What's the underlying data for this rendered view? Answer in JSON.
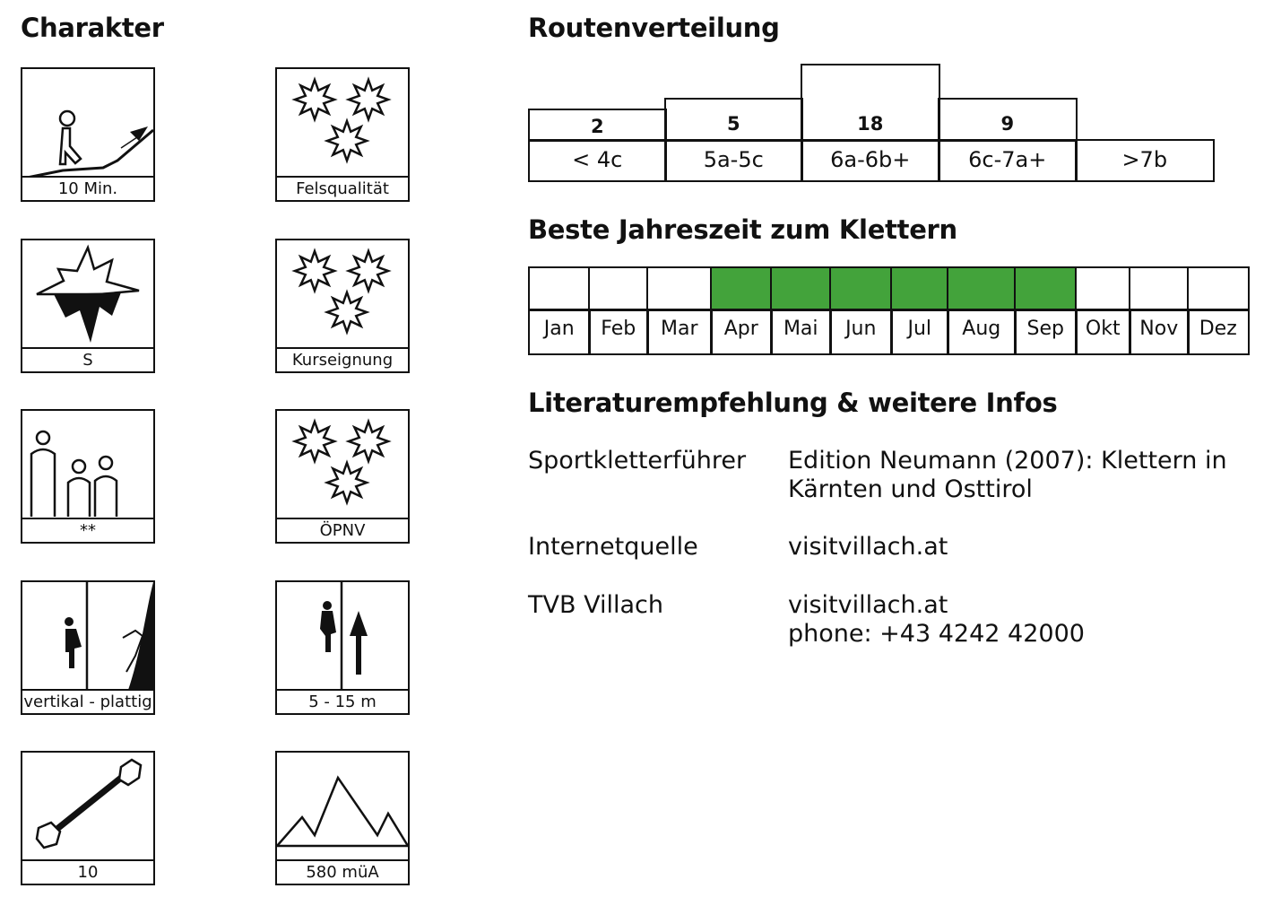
{
  "headings": {
    "charakter": "Charakter",
    "routen": "Routenverteilung",
    "jahreszeit": "Beste Jahreszeit zum Klettern",
    "literatur": "Literaturempfehlung & weitere Infos"
  },
  "tiles": [
    {
      "icon": "hiking-approach-icon",
      "label": "10 Min."
    },
    {
      "icon": "rock-quality-stars-icon",
      "label": "Felsqualität",
      "rating": 3
    },
    {
      "icon": "compass-south-icon",
      "label": "S"
    },
    {
      "icon": "course-suitability-stars-icon",
      "label": "Kurseignung",
      "rating": 3
    },
    {
      "icon": "family-icon",
      "label": "**"
    },
    {
      "icon": "public-transport-stars-icon",
      "label": "ÖPNV",
      "rating": 3
    },
    {
      "icon": "wall-angle-icon",
      "label": "vertikal - plattig"
    },
    {
      "icon": "route-length-icon",
      "label": "5 - 15 m"
    },
    {
      "icon": "quickdraw-icon",
      "label": "10"
    },
    {
      "icon": "mountain-altitude-icon",
      "label": "580 müA"
    }
  ],
  "routes": [
    {
      "grade": "< 4c",
      "count": "2"
    },
    {
      "grade": "5a-5c",
      "count": "5"
    },
    {
      "grade": "6a-6b+",
      "count": "18"
    },
    {
      "grade": "6c-7a+",
      "count": "9"
    },
    {
      "grade": ">7b",
      "count": ""
    }
  ],
  "months": [
    {
      "name": "Jan",
      "good": false
    },
    {
      "name": "Feb",
      "good": false
    },
    {
      "name": "Mar",
      "good": false
    },
    {
      "name": "Apr",
      "good": true
    },
    {
      "name": "Mai",
      "good": true
    },
    {
      "name": "Jun",
      "good": true
    },
    {
      "name": "Jul",
      "good": true
    },
    {
      "name": "Aug",
      "good": true
    },
    {
      "name": "Sep",
      "good": true
    },
    {
      "name": "Okt",
      "good": false
    },
    {
      "name": "Nov",
      "good": false
    },
    {
      "name": "Dez",
      "good": false
    }
  ],
  "season_color": "#43a33b",
  "literature": [
    {
      "label": "Sportkletterführer",
      "value": "Edition Neumann (2007): Klettern in Kärnten und Osttirol"
    },
    {
      "label": "Internetquelle",
      "value": "visitvillach.at"
    },
    {
      "label": "TVB Villach",
      "value": "visitvillach.at\nphone: +43 4242 42000"
    }
  ]
}
